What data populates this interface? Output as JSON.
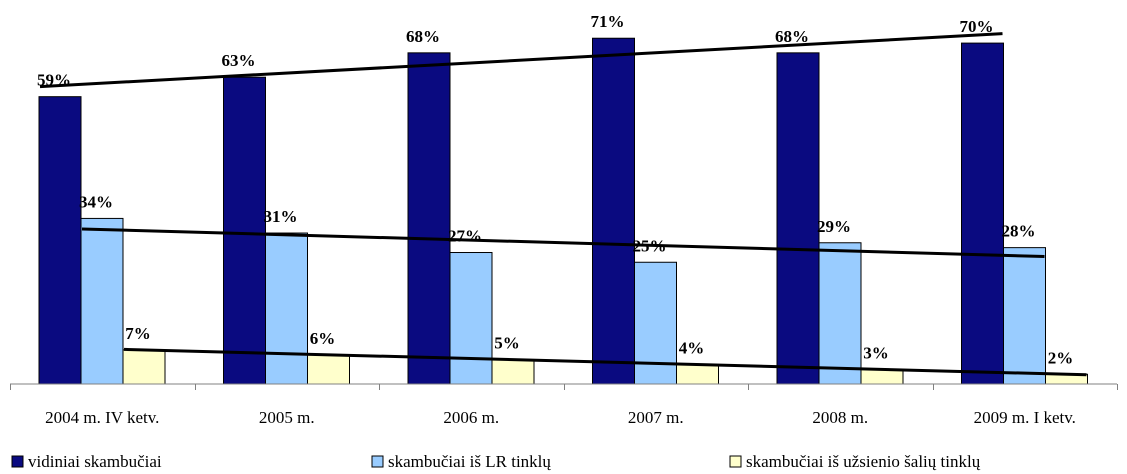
{
  "chart_data": {
    "type": "bar",
    "categories": [
      "2004 m. IV ketv.",
      "2005 m.",
      "2006 m.",
      "2007 m.",
      "2008 m.",
      "2009 m. I ketv."
    ],
    "series": [
      {
        "name": "vidiniai skambučiai",
        "color": "#0a0a80",
        "values": [
          59,
          63,
          68,
          71,
          68,
          70
        ],
        "labels": [
          "59%",
          "63%",
          "68%",
          "71%",
          "68%",
          "70%"
        ]
      },
      {
        "name": "skambučiai iš LR tinklų",
        "color": "#99ccff",
        "values": [
          34,
          31,
          27,
          25,
          29,
          28
        ],
        "labels": [
          "34%",
          "31%",
          "27%",
          "25%",
          "29%",
          "28%"
        ]
      },
      {
        "name": "skambučiai iš užsienio šalių tinklų",
        "color": "#ffffcc",
        "values": [
          7,
          6,
          5,
          4,
          3,
          2
        ],
        "labels": [
          "7%",
          "6%",
          "5%",
          "4%",
          "3%",
          "2%"
        ]
      }
    ],
    "trendlines": true,
    "ylim": [
      0,
      75
    ],
    "grid": false,
    "legend_position": "bottom",
    "title": "",
    "xlabel": "",
    "ylabel": ""
  }
}
